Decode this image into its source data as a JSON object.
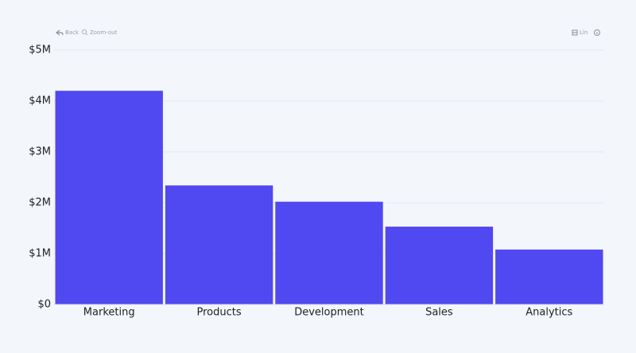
{
  "toolbar": {
    "back": "Back",
    "zoom": "Zoom-out",
    "scale": "Lin"
  },
  "chart_data": {
    "type": "bar",
    "categories": [
      "Marketing",
      "Products",
      "Development",
      "Sales",
      "Analytics"
    ],
    "values": [
      4200000,
      2340000,
      2020000,
      1530000,
      1080000
    ],
    "color": "#5048f0",
    "ylim": [
      0,
      5000000
    ],
    "yticks": [
      {
        "value": 0,
        "label": "$0"
      },
      {
        "value": 1000000,
        "label": "$1M"
      },
      {
        "value": 2000000,
        "label": "$2M"
      },
      {
        "value": 3000000,
        "label": "$3M"
      },
      {
        "value": 4000000,
        "label": "$4M"
      },
      {
        "value": 5000000,
        "label": "$5M"
      }
    ],
    "grid": true
  }
}
